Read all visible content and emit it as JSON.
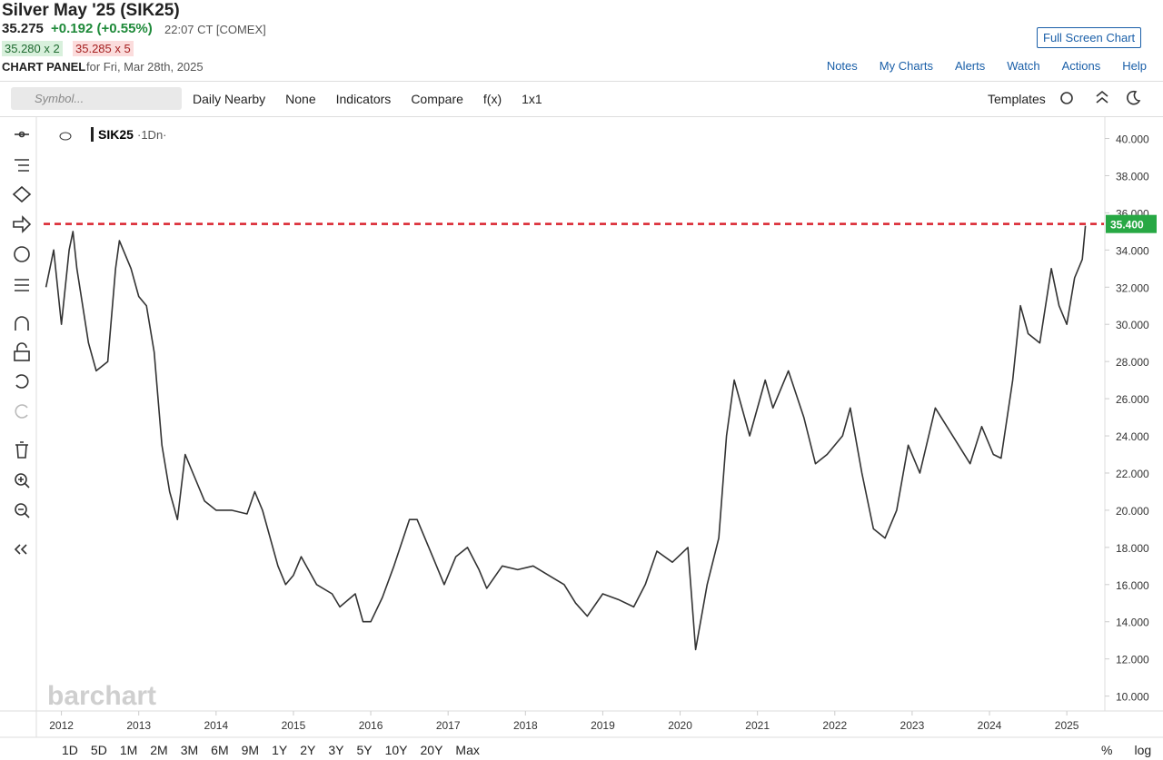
{
  "header": {
    "title": "Silver May '25 (SIK25)",
    "last": "35.275",
    "change": "+0.192 (+0.55%)",
    "time": "22:07 CT [COMEX]",
    "bid": "35.280 x 2",
    "ask": "35.285 x 5",
    "panel": "CHART PANEL",
    "date": "for Fri, Mar 28th, 2025",
    "fullscreen": "Full Screen Chart",
    "links": [
      "Notes",
      "My Charts",
      "Alerts",
      "Watch",
      "Actions",
      "Help"
    ]
  },
  "toolbar": {
    "symbol": "Symbol...",
    "items": [
      "Daily Nearby",
      "None",
      "Indicators",
      "Compare",
      "f(x)",
      "1x1"
    ],
    "templates": "Templates"
  },
  "periods": [
    "1D",
    "5D",
    "1M",
    "2M",
    "3M",
    "6M",
    "9M",
    "1Y",
    "2Y",
    "3Y",
    "5Y",
    "10Y",
    "20Y",
    "Max"
  ],
  "scale_buttons": [
    "%",
    "log"
  ],
  "watermark": "barchart",
  "chart_data": {
    "type": "line",
    "interval": "·1Dn·",
    "x": [
      2011.8,
      2011.9,
      2012.0,
      2012.1,
      2012.15,
      2012.2,
      2012.35,
      2012.45,
      2012.6,
      2012.7,
      2012.75,
      2012.9,
      2013.0,
      2013.1,
      2013.2,
      2013.3,
      2013.4,
      2013.5,
      2013.6,
      2013.7,
      2013.85,
      2014.0,
      2014.2,
      2014.4,
      2014.5,
      2014.6,
      2014.8,
      2014.9,
      2015.0,
      2015.1,
      2015.3,
      2015.5,
      2015.6,
      2015.8,
      2015.9,
      2016.0,
      2016.15,
      2016.3,
      2016.5,
      2016.6,
      2016.8,
      2016.95,
      2017.1,
      2017.25,
      2017.4,
      2017.5,
      2017.7,
      2017.9,
      2018.1,
      2018.3,
      2018.5,
      2018.65,
      2018.8,
      2019.0,
      2019.2,
      2019.4,
      2019.55,
      2019.7,
      2019.9,
      2020.1,
      2020.2,
      2020.35,
      2020.5,
      2020.6,
      2020.7,
      2020.9,
      2021.1,
      2021.2,
      2021.4,
      2021.6,
      2021.75,
      2021.9,
      2022.1,
      2022.2,
      2022.35,
      2022.5,
      2022.65,
      2022.8,
      2022.95,
      2023.1,
      2023.3,
      2023.45,
      2023.6,
      2023.75,
      2023.9,
      2024.05,
      2024.15,
      2024.3,
      2024.4,
      2024.5,
      2024.65,
      2024.8,
      2024.9,
      2025.0,
      2025.1,
      2025.2,
      2025.24
    ],
    "series": [
      {
        "name": "SIK25",
        "color": "#333333",
        "values": [
          32,
          34,
          30,
          34,
          35,
          33,
          29,
          27.5,
          28,
          33,
          34.5,
          33,
          31.5,
          31,
          28.5,
          23.5,
          21,
          19.5,
          23,
          22,
          20.5,
          20,
          20,
          19.8,
          21,
          20,
          17,
          16,
          16.5,
          17.5,
          16,
          15.5,
          14.8,
          15.5,
          14,
          14,
          15.3,
          17,
          19.5,
          19.5,
          17.5,
          16,
          17.5,
          18,
          16.8,
          15.8,
          17,
          16.8,
          17,
          16.5,
          16,
          15,
          14.3,
          15.5,
          15.2,
          14.8,
          16,
          17.8,
          17.2,
          18,
          12.5,
          16,
          18.5,
          24,
          27,
          24,
          27,
          25.5,
          27.5,
          25,
          22.5,
          23,
          24,
          25.5,
          22,
          19,
          18.5,
          20,
          23.5,
          22,
          25.5,
          24.5,
          23.5,
          22.5,
          24.5,
          23,
          22.8,
          27,
          31,
          29.5,
          29,
          33,
          31,
          30,
          32.5,
          33.5,
          35.3
        ]
      }
    ],
    "reference_line": {
      "value": 35.4,
      "label": "35.400",
      "color": "#d9232e"
    },
    "xlim": [
      2011.77,
      2025.48
    ],
    "ylim": [
      9.2,
      41.1
    ],
    "xticks": [
      2012,
      2013,
      2014,
      2015,
      2016,
      2017,
      2018,
      2019,
      2020,
      2021,
      2022,
      2023,
      2024,
      2025
    ],
    "yticks": [
      {
        "value": 10,
        "label": "10.000"
      },
      {
        "value": 12,
        "label": "12.000"
      },
      {
        "value": 14,
        "label": "14.000"
      },
      {
        "value": 16,
        "label": "16.000"
      },
      {
        "value": 18,
        "label": "18.000"
      },
      {
        "value": 20,
        "label": "20.000"
      },
      {
        "value": 22,
        "label": "22.000"
      },
      {
        "value": 24,
        "label": "24.000"
      },
      {
        "value": 26,
        "label": "26.000"
      },
      {
        "value": 28,
        "label": "28.000"
      },
      {
        "value": 30,
        "label": "30.000"
      },
      {
        "value": 32,
        "label": "32.000"
      },
      {
        "value": 34,
        "label": "34.000"
      },
      {
        "value": 36,
        "label": "36.000"
      },
      {
        "value": 38,
        "label": "38.000"
      },
      {
        "value": 40,
        "label": "40.000"
      }
    ]
  }
}
